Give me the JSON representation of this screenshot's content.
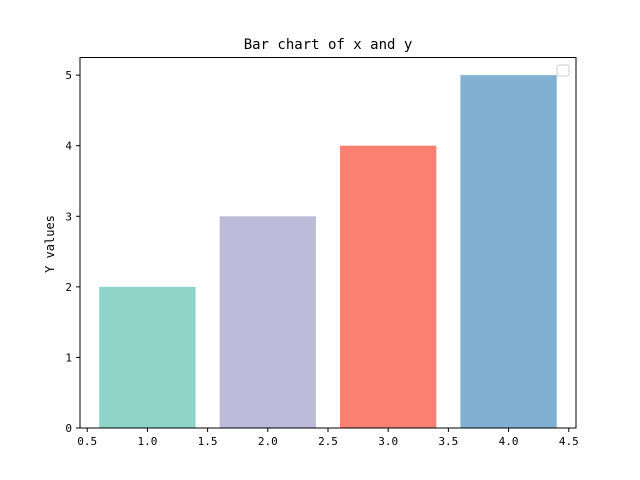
{
  "chart_data": {
    "type": "bar",
    "title": "Bar chart of x and y",
    "xlabel": "",
    "ylabel": "Y values",
    "x": [
      1.0,
      2.0,
      3.0,
      4.0
    ],
    "values": [
      2,
      3,
      4,
      5
    ],
    "bar_width": 0.8,
    "colors": [
      "#8dd3c7",
      "#bebada",
      "#fb8072",
      "#80b1d3"
    ],
    "xlim": [
      0.44,
      4.56
    ],
    "ylim": [
      0,
      5.25
    ],
    "xticks": [
      0.5,
      1.0,
      1.5,
      2.0,
      2.5,
      3.0,
      3.5,
      4.0,
      4.5
    ],
    "xtick_labels": [
      "0.5",
      "1.0",
      "1.5",
      "2.0",
      "2.5",
      "3.0",
      "3.5",
      "4.0",
      "4.5"
    ],
    "yticks": [
      0,
      1,
      2,
      3,
      4,
      5
    ],
    "ytick_labels": [
      "0",
      "1",
      "2",
      "3",
      "4",
      "5"
    ],
    "grid": false,
    "legend": "top-right"
  }
}
